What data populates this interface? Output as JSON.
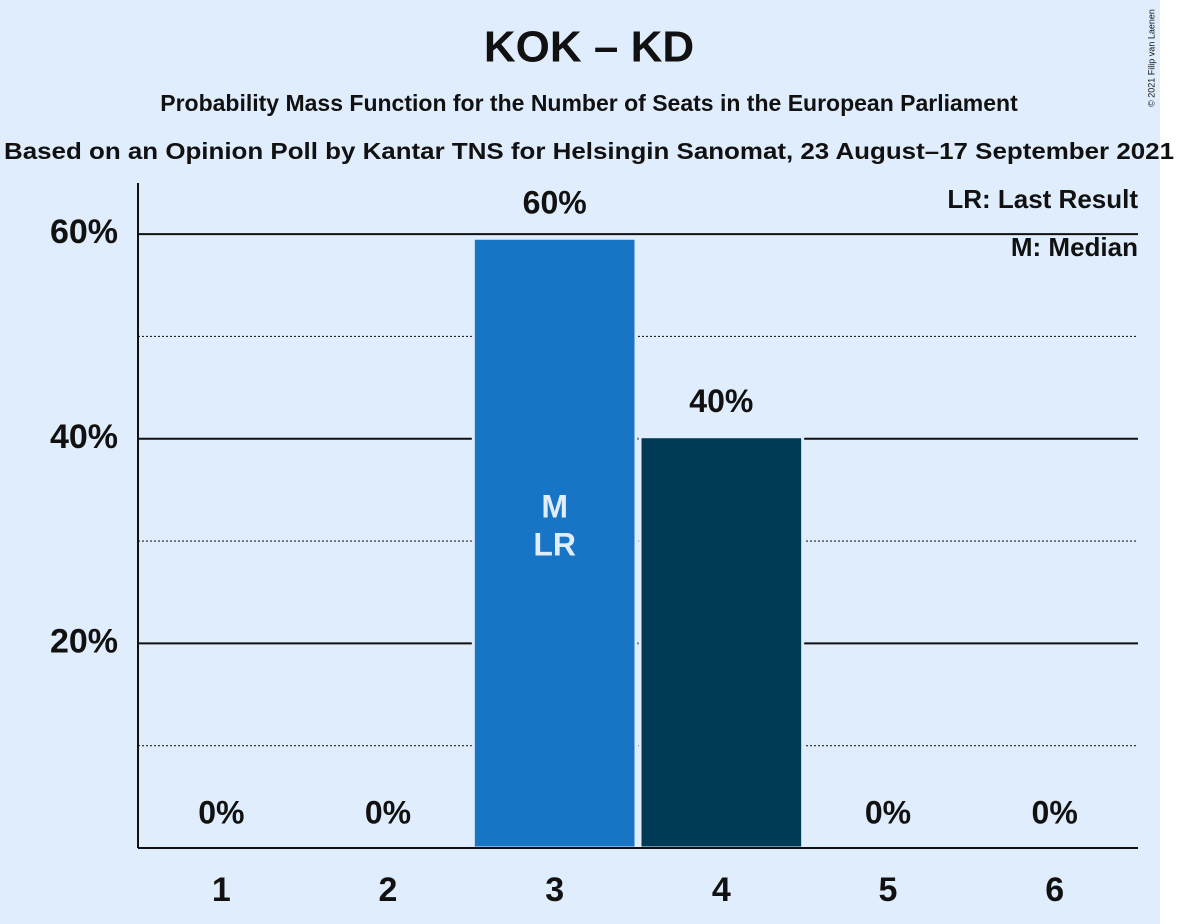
{
  "chart_data": {
    "type": "bar",
    "title": "KOK – KD",
    "subtitle": "Probability Mass Function for the Number of Seats in the European Parliament",
    "subtitle2": "Based on an Opinion Poll by Kantar TNS for Helsingin Sanomat, 23 August–17 September 2021",
    "copyright": "© 2021 Filip van Laenen",
    "categories": [
      "1",
      "2",
      "3",
      "4",
      "5",
      "6"
    ],
    "values": [
      0,
      0,
      59.6,
      40.2,
      0,
      0
    ],
    "value_labels": [
      "0%",
      "0%",
      "60%",
      "40%",
      "0%",
      "0%"
    ],
    "colors": [
      "#1874c4",
      "#1874c4",
      "#1874c4",
      "#003a54",
      "#1874c4",
      "#1874c4"
    ],
    "bar_annotations": [
      {
        "index": 2,
        "lines": [
          "M",
          "LR"
        ]
      }
    ],
    "legend": [
      "LR: Last Result",
      "M: Median"
    ],
    "legend_position": "top-right",
    "ylim": [
      0,
      65
    ],
    "yticks": [
      {
        "value": 20,
        "label": "20%"
      },
      {
        "value": 40,
        "label": "40%"
      },
      {
        "value": 60,
        "label": "60%"
      }
    ],
    "minor_yticks": [
      10,
      30,
      50
    ],
    "grid": true
  }
}
